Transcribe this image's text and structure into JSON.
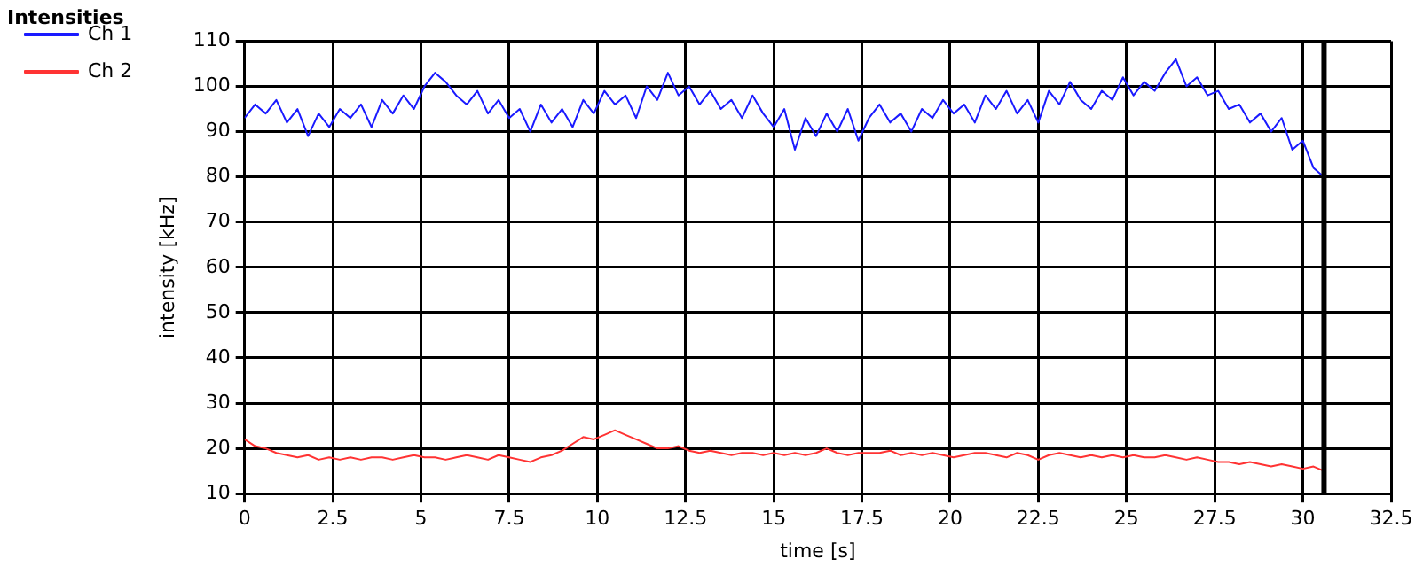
{
  "chart_data": {
    "type": "line",
    "title": "Intensities",
    "xlabel": "time [s]",
    "ylabel": "intensity [kHz]",
    "x": [
      0,
      0.3,
      0.6,
      0.9,
      1.2,
      1.5,
      1.8,
      2.1,
      2.4,
      2.7,
      3.0,
      3.3,
      3.6,
      3.9,
      4.2,
      4.5,
      4.8,
      5.1,
      5.4,
      5.7,
      6.0,
      6.3,
      6.6,
      6.9,
      7.2,
      7.5,
      7.8,
      8.1,
      8.4,
      8.7,
      9.0,
      9.3,
      9.6,
      9.9,
      10.2,
      10.5,
      10.8,
      11.1,
      11.4,
      11.7,
      12.0,
      12.3,
      12.6,
      12.9,
      13.2,
      13.5,
      13.8,
      14.1,
      14.4,
      14.7,
      15.0,
      15.3,
      15.6,
      15.9,
      16.2,
      16.5,
      16.8,
      17.1,
      17.4,
      17.7,
      18.0,
      18.3,
      18.6,
      18.9,
      19.2,
      19.5,
      19.8,
      20.1,
      20.4,
      20.7,
      21.0,
      21.3,
      21.6,
      21.9,
      22.2,
      22.5,
      22.8,
      23.1,
      23.4,
      23.7,
      24.0,
      24.3,
      24.6,
      24.9,
      25.2,
      25.5,
      25.8,
      26.1,
      26.4,
      26.7,
      27.0,
      27.3,
      27.6,
      27.9,
      28.2,
      28.5,
      28.8,
      29.1,
      29.4,
      29.7,
      30.0,
      30.3,
      30.6
    ],
    "series": [
      {
        "name": "Ch 1",
        "color": "#1a1aff",
        "values": [
          93,
          96,
          94,
          97,
          92,
          95,
          89,
          94,
          91,
          95,
          93,
          96,
          91,
          97,
          94,
          98,
          95,
          100,
          103,
          101,
          98,
          96,
          99,
          94,
          97,
          93,
          95,
          90,
          96,
          92,
          95,
          91,
          97,
          94,
          99,
          96,
          98,
          93,
          100,
          97,
          103,
          98,
          100,
          96,
          99,
          95,
          97,
          93,
          98,
          94,
          91,
          95,
          86,
          93,
          89,
          94,
          90,
          95,
          88,
          93,
          96,
          92,
          94,
          90,
          95,
          93,
          97,
          94,
          96,
          92,
          98,
          95,
          99,
          94,
          97,
          92,
          99,
          96,
          101,
          97,
          95,
          99,
          97,
          102,
          98,
          101,
          99,
          103,
          106,
          100,
          102,
          98,
          99,
          95,
          96,
          92,
          94,
          90,
          93,
          86,
          88,
          82,
          80
        ]
      },
      {
        "name": "Ch 2",
        "color": "#ff3333",
        "values": [
          22,
          20.5,
          20,
          19,
          18.5,
          18,
          18.5,
          17.5,
          18,
          17.5,
          18,
          17.5,
          18,
          18,
          17.5,
          18,
          18.5,
          18,
          18,
          17.5,
          18,
          18.5,
          18,
          17.5,
          18.5,
          18,
          17.5,
          17,
          18,
          18.5,
          19.5,
          21,
          22.5,
          22,
          23,
          24,
          23,
          22,
          21,
          20,
          20,
          20.5,
          19.5,
          19,
          19.5,
          19,
          18.5,
          19,
          19,
          18.5,
          19,
          18.5,
          19,
          18.5,
          19,
          20,
          19,
          18.5,
          19,
          19,
          19,
          19.5,
          18.5,
          19,
          18.5,
          19,
          18.5,
          18,
          18.5,
          19,
          19,
          18.5,
          18,
          19,
          18.5,
          17.5,
          18.5,
          19,
          18.5,
          18,
          18.5,
          18,
          18.5,
          18,
          18.5,
          18,
          18,
          18.5,
          18,
          17.5,
          18,
          17.5,
          17,
          17,
          16.5,
          17,
          16.5,
          16,
          16.5,
          16,
          15.5,
          16,
          15
        ]
      }
    ],
    "xlim": [
      0,
      32.5
    ],
    "xticks": [
      0,
      2.5,
      5,
      7.5,
      10,
      12.5,
      15,
      17.5,
      20,
      22.5,
      25,
      27.5,
      30,
      32.5
    ],
    "ylim": [
      10,
      110
    ],
    "yticks": [
      10,
      20,
      30,
      40,
      50,
      60,
      70,
      80,
      90,
      100,
      110
    ],
    "ref_lines": [
      {
        "axis": "x",
        "value": 30.6,
        "color": "#000000"
      }
    ],
    "grid": true,
    "legend": "top left",
    "marker": "none",
    "line_style": "solid"
  }
}
